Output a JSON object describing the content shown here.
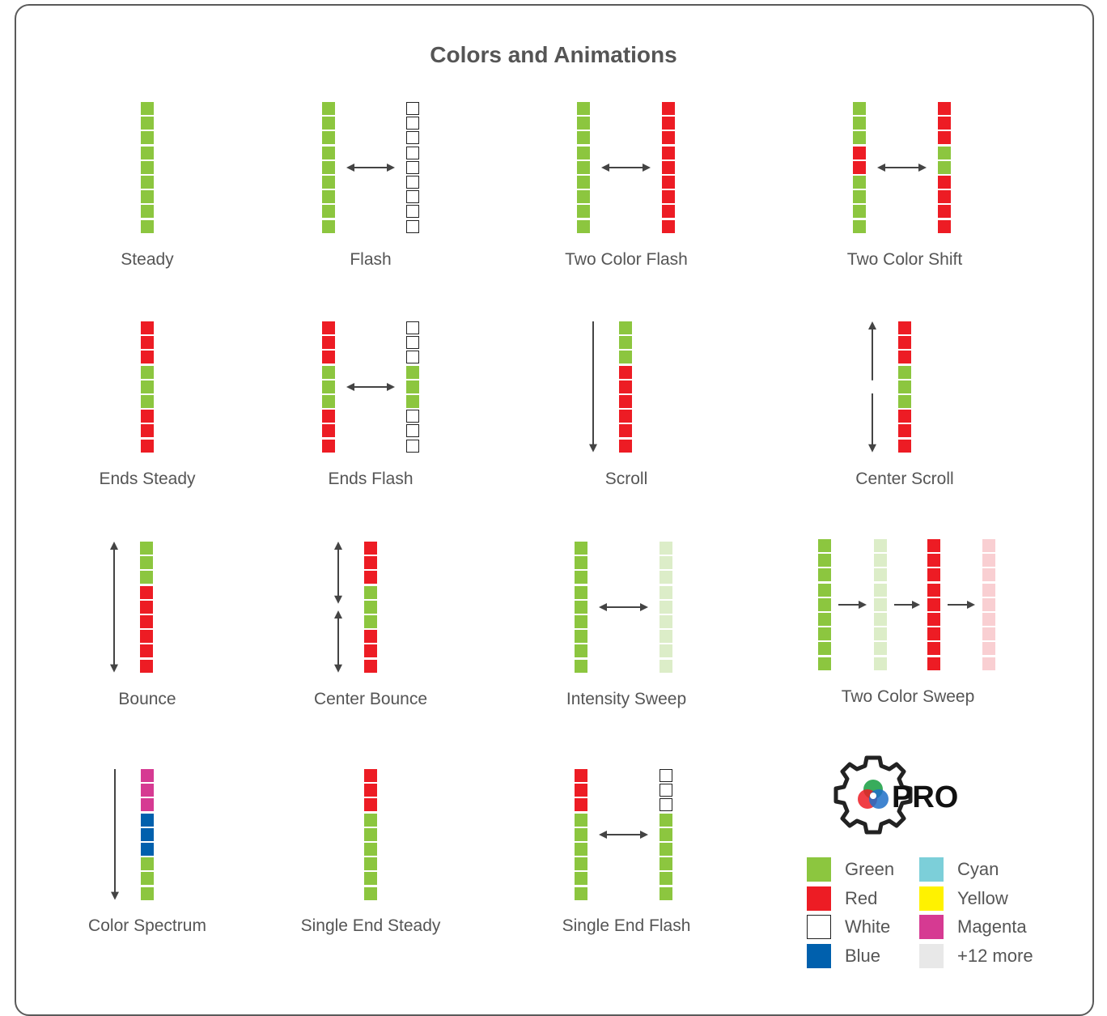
{
  "title": "Colors and Animations",
  "colors": {
    "G": "#8cc63f",
    "R": "#ed1c24",
    "W": "#ffffff",
    "B": "#0060ad",
    "M": "#d63a92",
    "g": "#dcedc8",
    "r": "#f9cfd2",
    "cyan": "#7ccfd9",
    "yellow": "#fff200",
    "more": "#e8e8e8",
    "outline": "#222222"
  },
  "tiles": [
    {
      "name": "Steady",
      "strips": [
        "GGGGGGGGG"
      ]
    },
    {
      "name": "Flash",
      "strips": [
        "GGGGGGGGG",
        "WWWWWWWWW"
      ],
      "arrow": "both"
    },
    {
      "name": "Two Color Flash",
      "strips": [
        "GGGGGGGGG",
        "RRRRRRRRR"
      ],
      "arrow": "both"
    },
    {
      "name": "Two Color Shift",
      "strips": [
        "GGGRRGGGG",
        "RRRGGRRRR"
      ],
      "arrow": "both"
    },
    {
      "name": "Ends Steady",
      "strips": [
        "RRRGGGRRR"
      ]
    },
    {
      "name": "Ends Flash",
      "strips": [
        "RRRGGGRRR",
        "WWWGGGWWW"
      ],
      "arrow": "both"
    },
    {
      "name": "Scroll",
      "strips": [
        "GGGRRRRRR"
      ],
      "vertical": "down"
    },
    {
      "name": "Center Scroll",
      "strips": [
        "RRRGGGRRR"
      ],
      "vertical": "center"
    },
    {
      "name": "Bounce",
      "strips": [
        "GGGRRRRRR"
      ],
      "vertical": "bounce"
    },
    {
      "name": "Center Bounce",
      "strips": [
        "RRRGGGRRR"
      ],
      "vertical": "center-bounce"
    },
    {
      "name": "Intensity Sweep",
      "strips": [
        "GGGGGGGGG",
        "ggggggggg"
      ],
      "arrow": "both"
    },
    {
      "name": "Two Color Sweep",
      "strips": [
        "GGGGGGGGG",
        "ggggggggg",
        "RRRRRRRRR",
        "rrrrrrrrr"
      ],
      "arrow": "right"
    },
    {
      "name": "Color Spectrum",
      "strips": [
        "MMMBBBGGG"
      ],
      "vertical": "down"
    },
    {
      "name": "Single End Steady",
      "strips": [
        "RRRGGGGGG"
      ]
    },
    {
      "name": "Single End Flash",
      "strips": [
        "RRRGGGGGG",
        "WWWGGGGGG"
      ],
      "arrow": "both"
    }
  ],
  "badge": "PRO",
  "legend": [
    {
      "label": "Green",
      "color": "#8cc63f"
    },
    {
      "label": "Red",
      "color": "#ed1c24"
    },
    {
      "label": "White",
      "color": "#ffffff"
    },
    {
      "label": "Blue",
      "color": "#0060ad"
    },
    {
      "label": "Cyan",
      "color": "#7ccfd9"
    },
    {
      "label": "Yellow",
      "color": "#fff200"
    },
    {
      "label": "Magenta",
      "color": "#d63a92"
    },
    {
      "label": "+12 more",
      "color": "#e8e8e8"
    }
  ]
}
